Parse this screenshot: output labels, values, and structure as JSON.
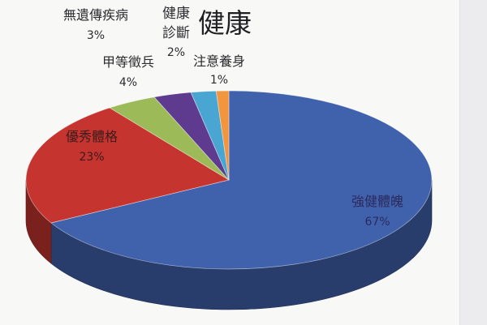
{
  "chart_data": {
    "type": "pie",
    "three_d": true,
    "title": "健康",
    "legend": "none",
    "slices": [
      {
        "label": "強健體魄",
        "value": 67,
        "value_label": "67%",
        "color": "#4062ad"
      },
      {
        "label": "優秀體格",
        "value": 23,
        "value_label": "23%",
        "color": "#c5342f"
      },
      {
        "label": "甲等徵兵",
        "value": 4,
        "value_label": "4%",
        "color": "#9cbb58"
      },
      {
        "label": "無遺傳疾病",
        "value": 3,
        "value_label": "3%",
        "color": "#5e3b8f"
      },
      {
        "label": "健康診斷",
        "value": 2,
        "value_label": "2%",
        "color": "#49a6d2"
      },
      {
        "label": "注意養身",
        "value": 1,
        "value_label": "1%",
        "color": "#f2953f"
      }
    ]
  }
}
